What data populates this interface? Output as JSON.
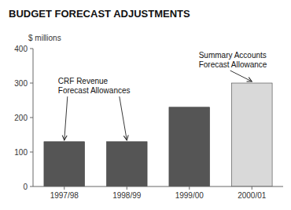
{
  "chart_data": {
    "type": "bar",
    "title": "BUDGET FORECAST ADJUSTMENTS",
    "ylabel": "$ millions",
    "categories": [
      "1997/98",
      "1998/99",
      "1999/00",
      "2000/01"
    ],
    "values": [
      130,
      130,
      230,
      300
    ],
    "colors": [
      "#555555",
      "#555555",
      "#555555",
      "#d9d9d9"
    ],
    "ylim": [
      0,
      400
    ],
    "yticks": [
      0,
      100,
      200,
      300,
      400
    ],
    "grid": false,
    "annotations": [
      "CRF Revenue\nForecast Allowances",
      "Summary Accounts\nForecast Allowance"
    ]
  }
}
